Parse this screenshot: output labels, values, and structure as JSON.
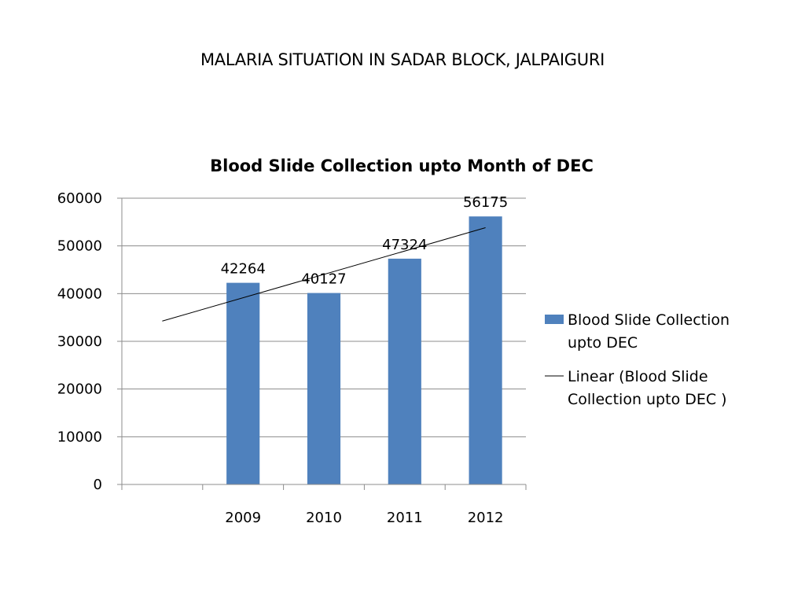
{
  "slide_title": "MALARIA SITUATION IN SADAR BLOCK, JALPAIGURI",
  "chart_data": {
    "type": "bar",
    "title": "Blood Slide Collection  upto Month of  DEC",
    "categories": [
      "",
      "2009",
      "2010",
      "2011",
      "2012"
    ],
    "series": [
      {
        "name": "Blood Slide Collection upto  DEC",
        "values": [
          null,
          42264,
          40127,
          47324,
          56175
        ],
        "color": "#4f81bd"
      }
    ],
    "data_labels": [
      "",
      "42264",
      "40127",
      "47324",
      "56175"
    ],
    "trendline": {
      "type": "linear",
      "name": "Linear (Blood Slide Collection  upto  DEC )",
      "color": "#000000"
    },
    "y_ticks": [
      0,
      10000,
      20000,
      30000,
      40000,
      50000,
      60000
    ],
    "ylim": [
      0,
      60000
    ],
    "grid": true,
    "legend": "right",
    "xlabel": "",
    "ylabel": ""
  }
}
